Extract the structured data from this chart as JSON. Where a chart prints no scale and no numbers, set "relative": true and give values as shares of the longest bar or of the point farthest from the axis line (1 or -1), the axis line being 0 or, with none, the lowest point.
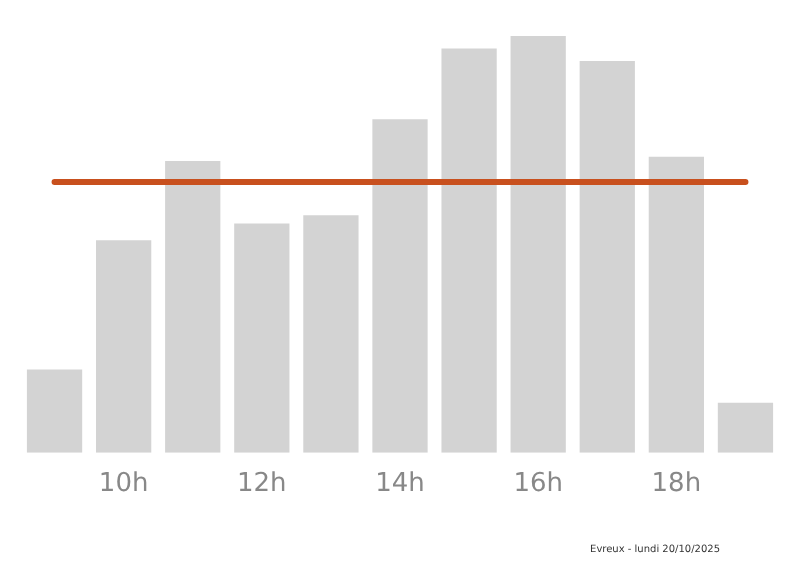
{
  "chart_data": {
    "type": "bar",
    "relative": true,
    "categories": [
      null,
      "10h",
      null,
      "12h",
      null,
      "14h",
      null,
      "16h",
      null,
      "18h",
      null
    ],
    "values": [
      0.2,
      0.51,
      0.7,
      0.55,
      0.57,
      0.8,
      0.97,
      1,
      0.94,
      0.71,
      0.12
    ],
    "color": "#d3d3d3",
    "ref_lines": [
      {
        "axis": "y",
        "value": 0.65,
        "color": "#c8501e",
        "line_style": "solid"
      }
    ],
    "annotations": [
      "Evreux - lundi 20/10/2025"
    ],
    "grid": false,
    "legend": false
  }
}
